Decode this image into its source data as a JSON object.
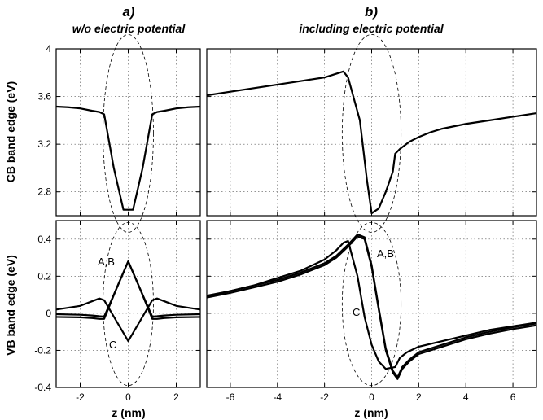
{
  "figure": {
    "panel_a_letter": "a)",
    "panel_a_subtitle": "w/o electric potential",
    "panel_b_letter": "b)",
    "panel_b_subtitle": "including electric potential",
    "xlabel": "z (nm)",
    "ylabel_top": "CB band edge (eV)",
    "ylabel_bottom": "VB band edge (eV)",
    "label_ab": "A,B",
    "label_c": "C"
  },
  "chart_data": [
    {
      "id": "cb_a",
      "type": "line",
      "title": "a)",
      "subtitle": "w/o electric potential",
      "xlabel": "",
      "ylabel": "CB band edge (eV)",
      "xlim": [
        -3,
        3
      ],
      "ylim": [
        2.6,
        4.0
      ],
      "xticks": [
        -2,
        0,
        2
      ],
      "yticks": [
        2.8,
        3.2,
        3.6,
        4.0
      ],
      "ytick_labels": [
        "2.8",
        "3.2",
        "3.6",
        "4"
      ],
      "grid": true,
      "series": [
        {
          "x": [
            -3,
            -2.5,
            -2,
            -1.5,
            -1.2,
            -1.0,
            -0.6,
            -0.2,
            0,
            0.2,
            0.6,
            1.0,
            1.2,
            1.5,
            2,
            2.5,
            3
          ],
          "y": [
            3.515,
            3.51,
            3.5,
            3.48,
            3.47,
            3.45,
            3.0,
            2.65,
            2.65,
            2.65,
            3.0,
            3.45,
            3.47,
            3.48,
            3.5,
            3.51,
            3.515
          ]
        }
      ],
      "ellipse": {
        "cx": 0,
        "cy": 3.29,
        "rx": 1.05,
        "ry": 0.83
      }
    },
    {
      "id": "cb_b",
      "type": "line",
      "title": "b)",
      "subtitle": "including electric potential",
      "xlabel": "",
      "ylabel": "",
      "xlim": [
        -7,
        7
      ],
      "ylim": [
        2.6,
        4.0
      ],
      "xticks": [
        -6,
        -4,
        -2,
        0,
        2,
        4,
        6
      ],
      "yticks": [
        2.8,
        3.2,
        3.6,
        4.0
      ],
      "grid": true,
      "series": [
        {
          "x": [
            -7,
            -6,
            -5,
            -4,
            -3,
            -2,
            -1.2,
            -1.0,
            -0.5,
            -0.2,
            0,
            0.3,
            0.6,
            0.9,
            1.0,
            1.2,
            1.6,
            2,
            2.5,
            3,
            4,
            5,
            6,
            7
          ],
          "y": [
            3.61,
            3.64,
            3.67,
            3.7,
            3.73,
            3.76,
            3.81,
            3.76,
            3.4,
            2.9,
            2.62,
            2.66,
            2.8,
            2.97,
            3.12,
            3.16,
            3.22,
            3.26,
            3.3,
            3.33,
            3.37,
            3.4,
            3.43,
            3.46
          ]
        }
      ],
      "ellipse": {
        "cx": 0,
        "cy": 3.29,
        "rx": 1.25,
        "ry": 0.83
      }
    },
    {
      "id": "vb_a",
      "type": "line",
      "title": "",
      "xlabel": "z (nm)",
      "ylabel": "VB band edge (eV)",
      "xlim": [
        -3,
        3
      ],
      "ylim": [
        -0.4,
        0.5
      ],
      "xticks": [
        -2,
        0,
        2
      ],
      "yticks": [
        -0.4,
        -0.2,
        0,
        0.2,
        0.4
      ],
      "ytick_labels": [
        "-0.4",
        "-0.2",
        "0",
        "0.2",
        "0.4"
      ],
      "grid": true,
      "series": [
        {
          "name": "A,B",
          "x": [
            -3,
            -2,
            -1.5,
            -1.2,
            -1.0,
            -0.5,
            0,
            0.5,
            1.0,
            1.2,
            1.5,
            2,
            3
          ],
          "y": [
            -0.02,
            -0.022,
            -0.026,
            -0.03,
            -0.03,
            0.13,
            0.28,
            0.13,
            -0.03,
            -0.03,
            -0.026,
            -0.022,
            -0.02
          ]
        },
        {
          "name": "A,B",
          "x": [
            -3,
            -2,
            -1.5,
            -1.2,
            -1.0,
            -0.5,
            0,
            0.5,
            1.0,
            1.2,
            1.5,
            2,
            3
          ],
          "y": [
            -0.005,
            -0.008,
            -0.012,
            -0.016,
            -0.018,
            0.13,
            0.28,
            0.13,
            -0.018,
            -0.016,
            -0.012,
            -0.008,
            -0.005
          ]
        },
        {
          "name": "C",
          "x": [
            -3,
            -2,
            -1.5,
            -1.2,
            -1.0,
            -0.5,
            0,
            0.5,
            1.0,
            1.2,
            1.5,
            2,
            3
          ],
          "y": [
            0.02,
            0.04,
            0.065,
            0.08,
            0.07,
            -0.04,
            -0.15,
            -0.04,
            0.07,
            0.08,
            0.065,
            0.04,
            0.02
          ]
        }
      ],
      "ellipse": {
        "cx": 0,
        "cy": 0.05,
        "rx": 1.05,
        "ry": 0.44
      }
    },
    {
      "id": "vb_b",
      "type": "line",
      "title": "",
      "xlabel": "z (nm)",
      "ylabel": "",
      "xlim": [
        -7,
        7
      ],
      "ylim": [
        -0.4,
        0.5
      ],
      "xticks": [
        -6,
        -4,
        -2,
        0,
        2,
        4,
        6
      ],
      "yticks": [
        -0.4,
        -0.2,
        0,
        0.2,
        0.4
      ],
      "grid": true,
      "series": [
        {
          "name": "A,B",
          "x": [
            -7,
            -6,
            -5,
            -4,
            -3,
            -2,
            -1.5,
            -1.0,
            -0.6,
            -0.3,
            0,
            0.3,
            0.6,
            0.9,
            1.1,
            1.3,
            1.6,
            2,
            3,
            4,
            5,
            6,
            7
          ],
          "y": [
            0.085,
            0.11,
            0.14,
            0.17,
            0.21,
            0.26,
            0.3,
            0.36,
            0.415,
            0.4,
            0.25,
            0.02,
            -0.2,
            -0.32,
            -0.355,
            -0.3,
            -0.26,
            -0.22,
            -0.18,
            -0.14,
            -0.11,
            -0.085,
            -0.065
          ]
        },
        {
          "name": "A,B",
          "x": [
            -7,
            -6,
            -5,
            -4,
            -3,
            -2,
            -1.5,
            -1.0,
            -0.6,
            -0.3,
            0,
            0.3,
            0.6,
            0.9,
            1.1,
            1.3,
            1.6,
            2,
            3,
            4,
            5,
            6,
            7
          ],
          "y": [
            0.095,
            0.12,
            0.15,
            0.18,
            0.22,
            0.27,
            0.31,
            0.37,
            0.425,
            0.41,
            0.26,
            0.03,
            -0.19,
            -0.31,
            -0.345,
            -0.29,
            -0.25,
            -0.21,
            -0.17,
            -0.13,
            -0.1,
            -0.075,
            -0.055
          ]
        },
        {
          "name": "C",
          "x": [
            -7,
            -6,
            -5,
            -4,
            -3,
            -2,
            -1.5,
            -1.2,
            -1.0,
            -0.6,
            -0.3,
            0,
            0.3,
            0.6,
            1.0,
            1.2,
            1.5,
            2,
            3,
            4,
            5,
            6,
            7
          ],
          "y": [
            0.09,
            0.12,
            0.15,
            0.19,
            0.23,
            0.29,
            0.34,
            0.38,
            0.39,
            0.2,
            -0.02,
            -0.17,
            -0.26,
            -0.3,
            -0.29,
            -0.24,
            -0.21,
            -0.18,
            -0.15,
            -0.12,
            -0.09,
            -0.07,
            -0.05
          ]
        }
      ],
      "ellipse": {
        "cx": 0,
        "cy": 0.05,
        "rx": 1.25,
        "ry": 0.44
      }
    }
  ]
}
